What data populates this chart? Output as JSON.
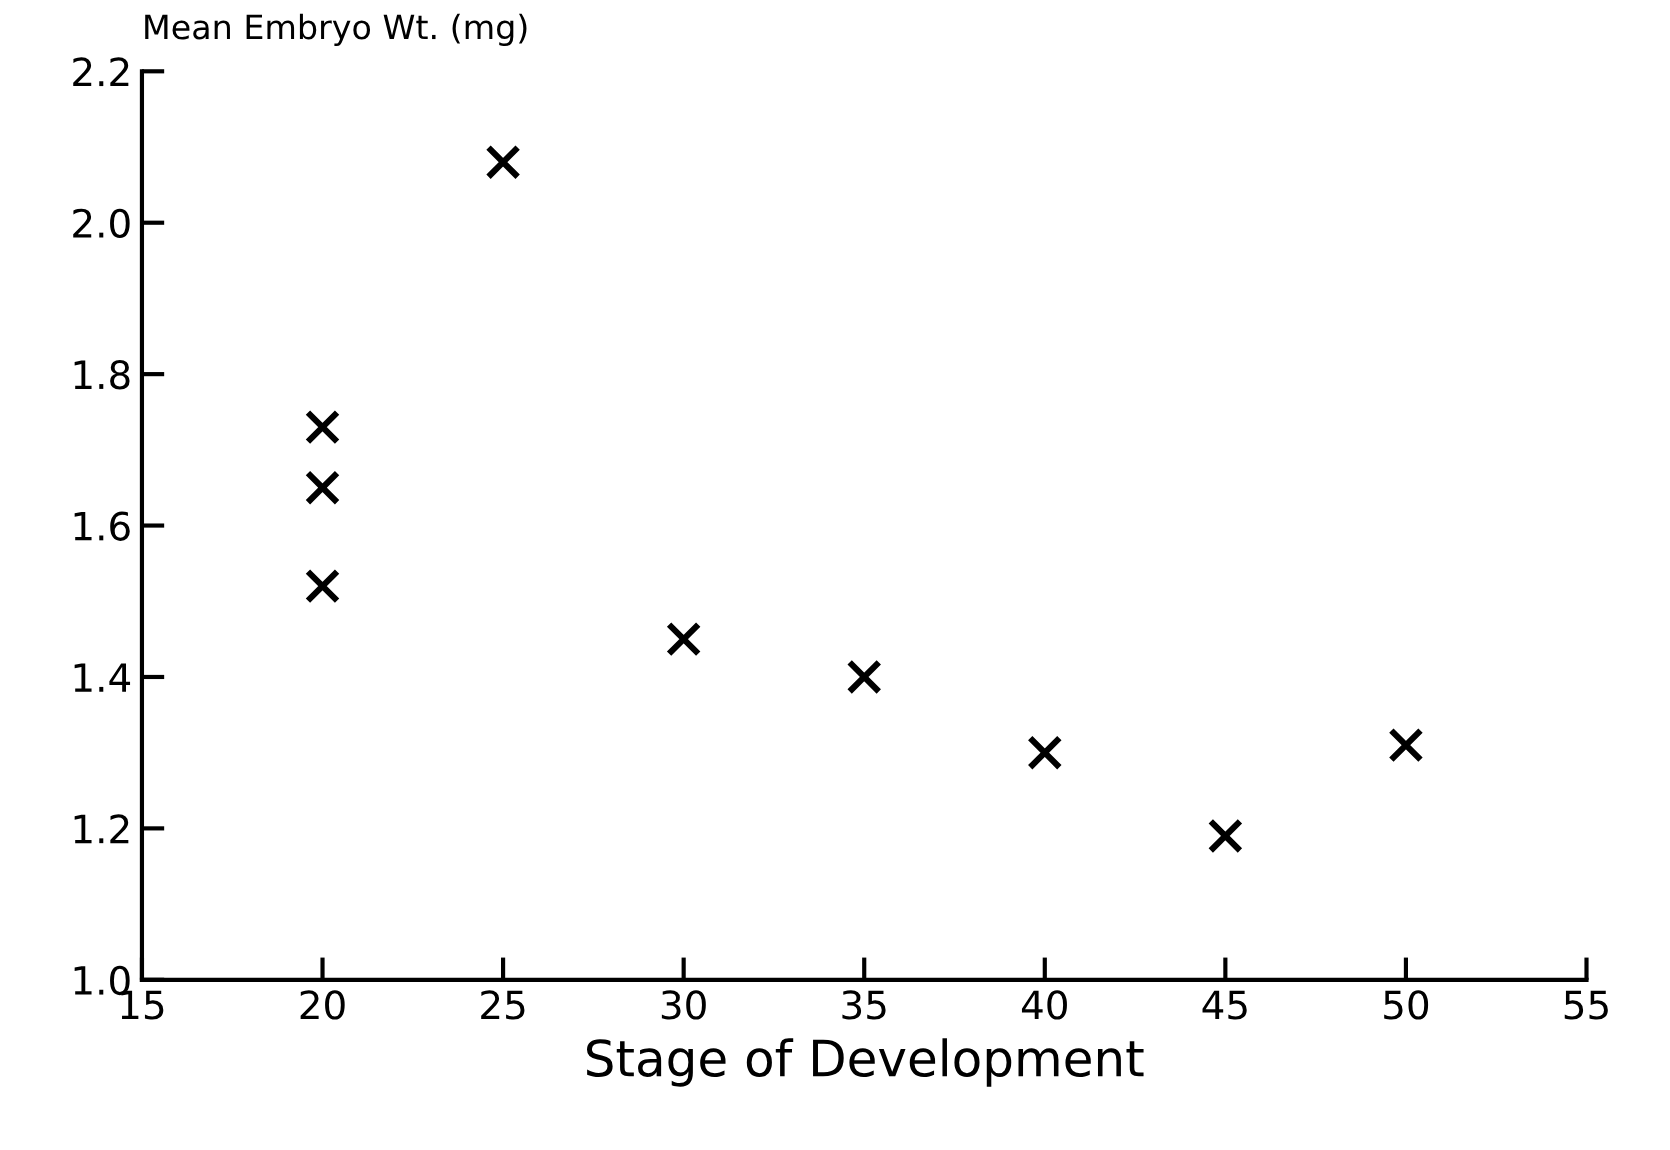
{
  "chart_data": {
    "type": "scatter",
    "xlabel": "Stage of Development",
    "ylabel": "Mean Embryo Wt. (mg)",
    "x": [
      20,
      20,
      20,
      25,
      30,
      35,
      40,
      45,
      50
    ],
    "values": [
      1.73,
      1.65,
      1.52,
      2.08,
      1.45,
      1.4,
      1.3,
      1.19,
      1.31
    ],
    "color": "#000000",
    "marker": "cross",
    "xlim": [
      15,
      55
    ],
    "xticks": [
      15,
      20,
      25,
      30,
      35,
      40,
      45,
      50,
      55
    ],
    "ylim": [
      1.0,
      2.2
    ],
    "yticks": [
      {
        "value": 1.0,
        "label": "1.0"
      },
      1.2,
      1.4,
      1.6,
      1.8,
      {
        "value": 2.0,
        "label": "2.0"
      },
      2.2
    ],
    "grid": false,
    "legend": false
  }
}
